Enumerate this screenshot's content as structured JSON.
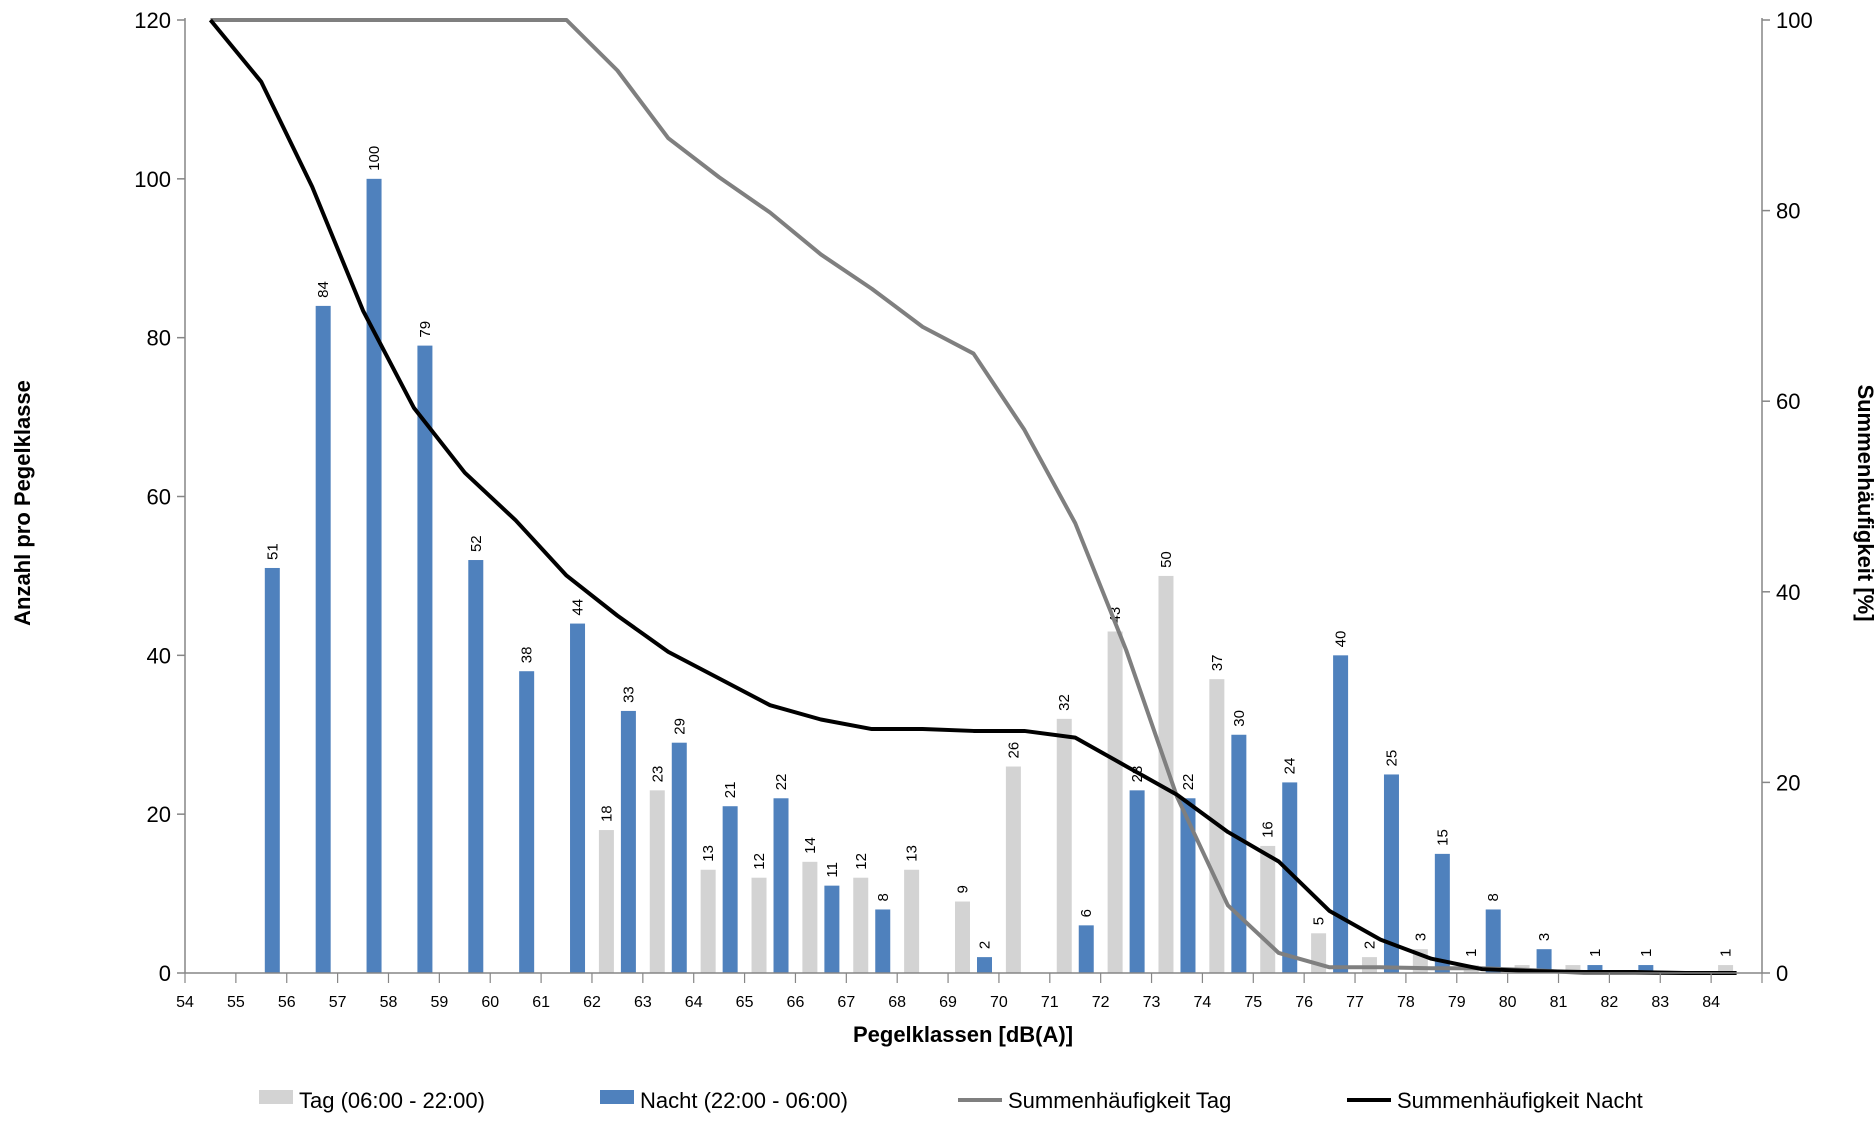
{
  "chart_data": {
    "type": "bar",
    "title": "",
    "xlabel": "Pegelklassen [dB(A)]",
    "ylabel": "Anzahl pro Pegelklasse",
    "y2label": "Summenhäufigkeit [%]",
    "ylim": [
      0,
      120
    ],
    "y2lim": [
      0,
      100
    ],
    "yticks": [
      0,
      20,
      40,
      60,
      80,
      100,
      120
    ],
    "y2ticks": [
      0,
      20,
      40,
      60,
      80,
      100
    ],
    "categories": [
      "54",
      "55",
      "56",
      "57",
      "58",
      "59",
      "60",
      "61",
      "62",
      "63",
      "64",
      "65",
      "66",
      "67",
      "68",
      "69",
      "70",
      "71",
      "72",
      "73",
      "74",
      "75",
      "76",
      "77",
      "78",
      "79",
      "80",
      "81",
      "82",
      "83",
      "84"
    ],
    "grid": false,
    "legend_position": "bottom",
    "series": [
      {
        "name": "Tag (06:00 - 22:00)",
        "kind": "bar",
        "axis": "left",
        "color": "#d3d3d3",
        "values": [
          0,
          0,
          0,
          0,
          0,
          0,
          0,
          0,
          18,
          23,
          13,
          12,
          14,
          12,
          13,
          9,
          26,
          32,
          43,
          50,
          37,
          16,
          5,
          2,
          3,
          1,
          1,
          1,
          0,
          0,
          1
        ],
        "labels": [
          null,
          null,
          null,
          null,
          null,
          null,
          null,
          null,
          "18",
          "23",
          "13",
          "12",
          "14",
          "12",
          "13",
          "9",
          "26",
          "32",
          "43",
          "50",
          "37",
          "16",
          "5",
          "2",
          "3",
          "1",
          null,
          null,
          null,
          null,
          "1"
        ]
      },
      {
        "name": "Nacht (22:00 - 06:00)",
        "kind": "bar",
        "axis": "left",
        "color": "#4f81bd",
        "values": [
          0,
          51,
          84,
          100,
          79,
          52,
          38,
          44,
          33,
          29,
          21,
          22,
          11,
          8,
          0,
          2,
          0,
          6,
          23,
          22,
          30,
          24,
          40,
          25,
          15,
          8,
          3,
          1,
          1,
          0,
          0
        ],
        "labels": [
          null,
          "51",
          "84",
          "100",
          "79",
          "52",
          "38",
          "44",
          "33",
          "29",
          "21",
          "22",
          "11",
          "8",
          null,
          "2",
          null,
          "6",
          "23",
          "22",
          "30",
          "24",
          "40",
          "25",
          "15",
          "8",
          "3",
          "1",
          "1",
          null,
          null
        ]
      },
      {
        "name": "Summenhäufigkeit Tag",
        "kind": "line",
        "axis": "right",
        "color": "#7f7f7f",
        "values": [
          100,
          100,
          100,
          100,
          100,
          100,
          100,
          100,
          94.7,
          87.6,
          83.5,
          79.8,
          75.4,
          71.8,
          67.8,
          65,
          57,
          47.2,
          33.9,
          18.5,
          7.1,
          2.1,
          0.6,
          0.6,
          0.5,
          0.5,
          0.3,
          0,
          0,
          0,
          0
        ]
      },
      {
        "name": "Summenhäufigkeit Nacht",
        "kind": "line",
        "axis": "right",
        "color": "#000000",
        "values": [
          100,
          93.5,
          82.5,
          69.5,
          59.3,
          52.5,
          47.5,
          41.7,
          37.5,
          33.7,
          30.9,
          28.1,
          26.6,
          25.6,
          25.6,
          25.4,
          25.4,
          24.7,
          21.7,
          18.7,
          14.8,
          11.7,
          6.5,
          3.5,
          1.5,
          0.4,
          0.2,
          0.1,
          0.1,
          0,
          0
        ]
      }
    ]
  }
}
